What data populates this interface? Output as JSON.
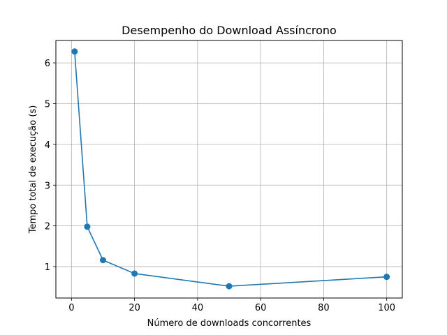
{
  "chart_data": {
    "type": "line",
    "title": "Desempenho do Download Assíncrono",
    "xlabel": "Número de downloads concorrentes",
    "ylabel": "Tempo total de execução (s)",
    "xlim": [
      -4.95,
      104.95
    ],
    "ylim": [
      0.23,
      6.55
    ],
    "xticks": [
      0,
      20,
      40,
      60,
      80,
      100
    ],
    "yticks": [
      1,
      2,
      3,
      4,
      5,
      6
    ],
    "grid": true,
    "series": [
      {
        "x": [
          1,
          5,
          10,
          20,
          50,
          100
        ],
        "y": [
          6.28,
          1.98,
          1.16,
          0.83,
          0.52,
          0.75
        ],
        "color": "#1f77b4",
        "marker": "circle"
      }
    ]
  }
}
